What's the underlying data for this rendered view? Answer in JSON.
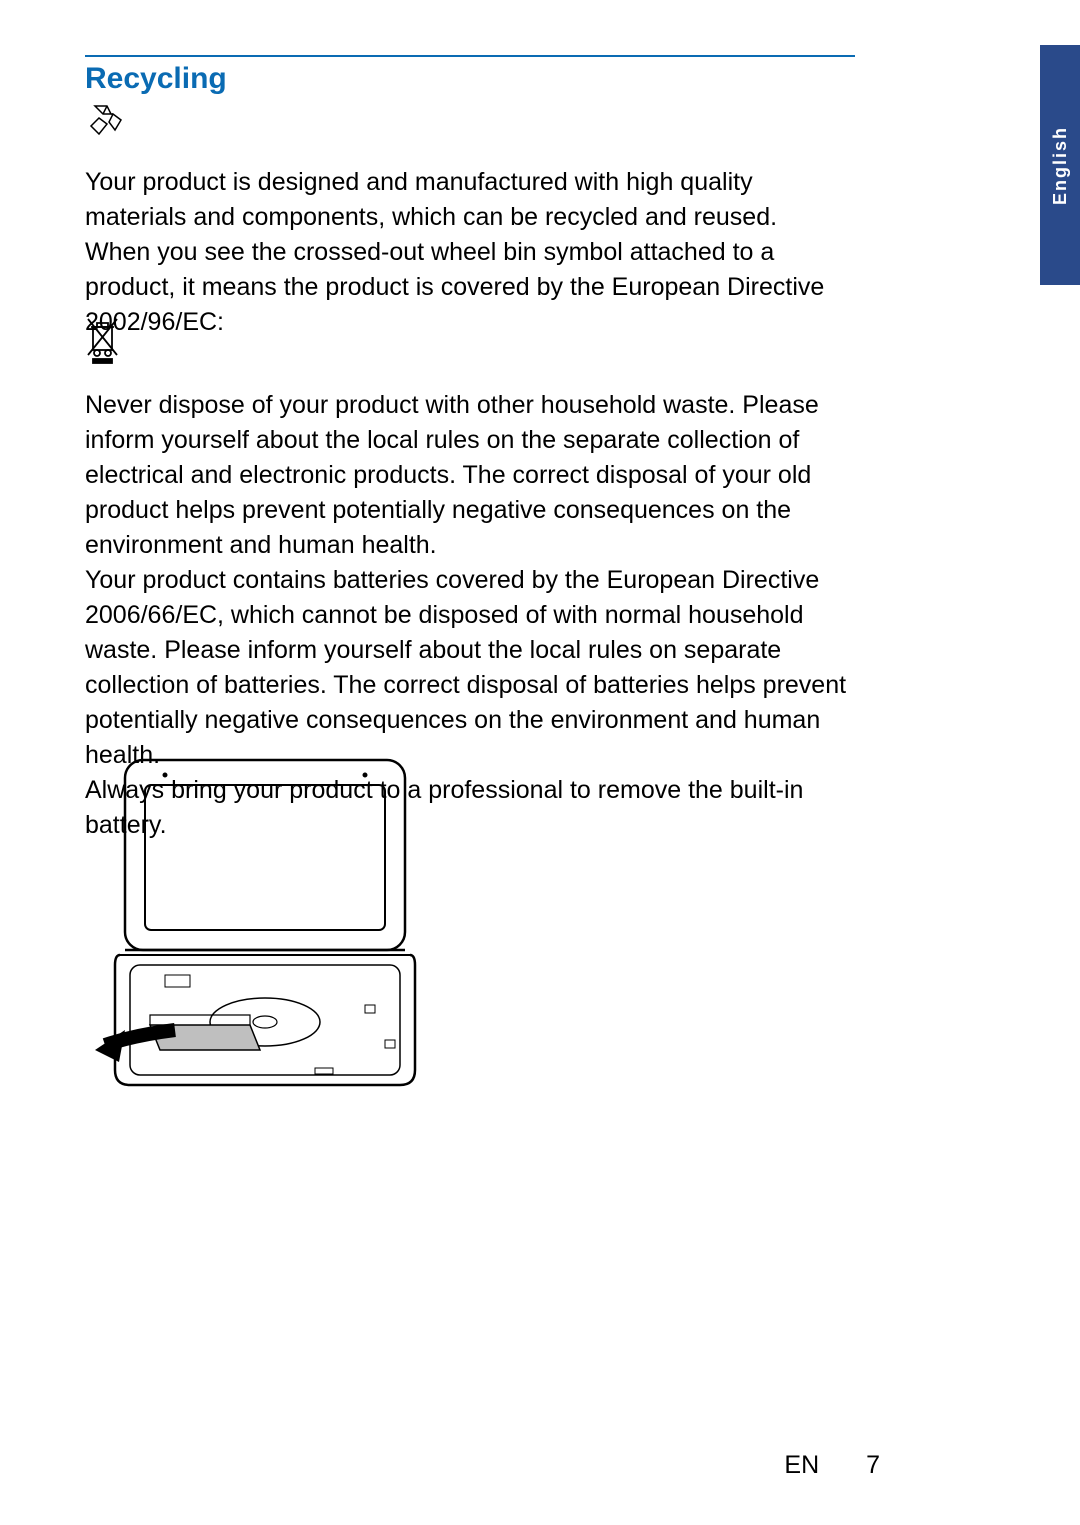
{
  "colors": {
    "heading": "#0a6bb3",
    "rule": "#0a6bb3",
    "text": "#000000",
    "tab_bg": "#2a4a8a",
    "tab_text": "#ffffff",
    "page_bg": "#ffffff"
  },
  "typography": {
    "heading_fontsize": 30,
    "body_fontsize": 25,
    "body_lineheight": 35,
    "tab_fontsize": 18,
    "footer_fontsize": 25
  },
  "heading": "Recycling",
  "para1": "Your product is designed and manufactured with high quality materials and components, which can be recycled and reused.\nWhen you see the crossed-out wheel bin symbol attached to a product, it means the product is covered by the European Directive 2002/96/EC:",
  "para2": "Never dispose of your product with other household waste. Please inform yourself about the local rules on the separate collection of electrical and electronic products. The correct disposal of your old product helps prevent potentially negative consequences on the environment and human health.\nYour product contains batteries covered by the European Directive 2006/66/EC, which cannot be disposed of with normal household waste. Please inform yourself about the local rules on separate collection of batteries. The correct disposal of batteries helps prevent potentially negative consequences on the environment and human health.\nAlways bring your product to a professional to remove the built-in battery.",
  "tab_label": "English",
  "footer": {
    "lang_code": "EN",
    "page_number": "7"
  }
}
